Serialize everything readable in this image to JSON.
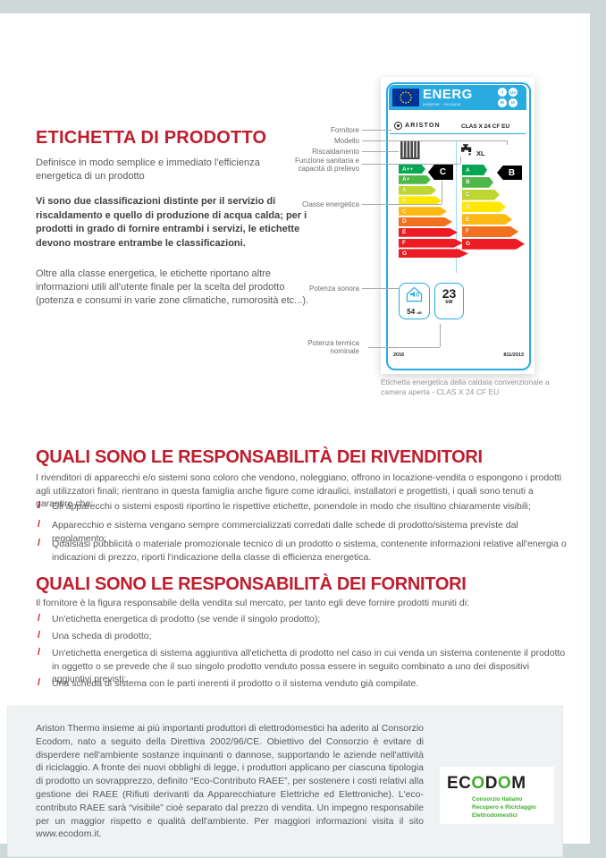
{
  "intro": {
    "heading": "ETICHETTA DI PRODOTTO",
    "p1": "Definisce in modo semplice e immediato l'efficienza energetica di un prodotto",
    "p2": "Vi sono due classificazioni distinte per il servizio di riscaldamento e quello di produzione di acqua calda; per i prodotti in grado di fornire entrambi i servizi, le etichette devono mostrare entrambe le classificazioni.",
    "p3": "Oltre alla classe energetica, le etichette riportano altre informazioni utili all'utente finale per la scelta del prodotto (potenza e consumi in varie zone climatiche, rumorosità etc...)."
  },
  "energy_label": {
    "header": {
      "word": "ENERG",
      "subtitle": "енергия · ενεργεια",
      "badges": [
        "Y",
        "IJA",
        "IE",
        "IA"
      ]
    },
    "supplier": "ARISTON",
    "model": "CLAS X 24 CF EU",
    "dhw_capacity": "XL",
    "left_scale": {
      "indicator": "C",
      "classes": [
        {
          "label": "A++",
          "color": "#00a651"
        },
        {
          "label": "A+",
          "color": "#4db848"
        },
        {
          "label": "A",
          "color": "#bed630"
        },
        {
          "label": "B",
          "color": "#ffe800"
        },
        {
          "label": "C",
          "color": "#fdb913"
        },
        {
          "label": "D",
          "color": "#f3701e"
        },
        {
          "label": "E",
          "color": "#ed1c24"
        },
        {
          "label": "F",
          "color": "#ed1c24"
        },
        {
          "label": "G",
          "color": "#ed1c24"
        }
      ]
    },
    "right_scale": {
      "indicator": "B",
      "classes": [
        {
          "label": "A",
          "color": "#00a651"
        },
        {
          "label": "B",
          "color": "#4db848"
        },
        {
          "label": "C",
          "color": "#bed630"
        },
        {
          "label": "D",
          "color": "#ffe800"
        },
        {
          "label": "E",
          "color": "#fdb913"
        },
        {
          "label": "F",
          "color": "#f3701e"
        },
        {
          "label": "G",
          "color": "#ed1c24"
        }
      ]
    },
    "sound_power": {
      "value": "54",
      "unit": "dB"
    },
    "heat_output": {
      "value": "23",
      "unit": "kW"
    },
    "year": "2016",
    "regulation": "811/2013",
    "annotations": {
      "fornitore": "Fornitore",
      "modello": "Modello",
      "riscaldamento": "Riscaldamento",
      "funzione_line1": "Funzione sanitaria e",
      "funzione_line2": "capacità di prelievo",
      "classe": "Classe energetica",
      "sonora": "Potenza sonora",
      "termica_line1": "Potenza termica",
      "termica_line2": "nominale"
    },
    "caption": "Etichetta energetica della caldaia convenzionale a camera aperta - CLAS X 24 CF EU"
  },
  "sections": [
    {
      "heading": "QUALI SONO LE RESPONSABILITÀ DEI RIVENDITORI",
      "intro": "I rivenditori di apparecchi e/o sistemi sono coloro che vendono, noleggiano, offrono in locazione-vendita o espongono i prodotti agli utilizzatori finali; rientrano in questa famiglia anche figure come idraulici, installatori e progettisti, i quali sono tenuti a garantire che:",
      "bullet_mark": "/",
      "bullets": [
        "Gli apparecchi o sistemi esposti riportino le rispettive etichette, ponendole in modo che risultino chiaramente visibili;",
        "Apparecchio e sistema vengano sempre commercializzati corredati dalle schede di prodotto/sistema previste dal regolamento;",
        "Qualsiasi pubblicità o materiale promozionale tecnico di un prodotto o sistema, contenente informazioni relative all'energia o indicazioni di prezzo, riporti l'indicazione della classe di efficienza energetica."
      ]
    },
    {
      "heading": "QUALI SONO LE RESPONSABILITÀ DEI FORNITORI",
      "intro": "Il fornitore è la figura responsabile della vendita sul mercato, per tanto egli deve fornire prodotti muniti di:",
      "bullet_mark": "/",
      "bullets": [
        "Un'etichetta energetica di prodotto (se vende il singolo prodotto);",
        "Una scheda di prodotto;",
        "Un'etichetta energetica di sistema aggiuntiva all'etichetta di prodotto nel caso in cui venda un sistema contenente il prodotto in oggetto o se prevede che il suo singolo prodotto venduto possa essere in seguito combinato a uno dei dispositivi aggiuntivi previsti;",
        "Una scheda di sistema con le parti inerenti il prodotto o il sistema venduto già compilate."
      ]
    }
  ],
  "footer_box": {
    "text": "Ariston Thermo insieme ai più importanti produttori di elettrodomestici ha aderito al Consorzio Ecodom, nato a seguito della Direttiva 2002/96/CE. Obiettivo del Consorzio è evitare di disperdere nell'ambiente sostanze inquinanti o dannose, supportando le aziende nell'attività di riciclaggio. A fronte dei nuovi obblighi di legge, i produttori applicano per ciascuna tipologia di prodotto un sovrapprezzo, definito “Eco-Contributo RAEE”, per sostenere i costi relativi alla gestione dei RAEE (Rifiuti derivanti da Apparecchiature Elettriche ed Elettroniche). L'eco-contributo RAEE sarà “visibile” cioè separato dal prezzo di vendita. Un impegno responsabile per un maggior rispetto e qualità dell'ambiente. Per maggiori informazioni visita il sito www.ecodom.it.",
    "ecodom": {
      "word_parts": {
        "p1": "EC",
        "o1": "O",
        "p2": "D",
        "o2": "O",
        "p3": "M"
      },
      "sub1": "Consorzio Italiano",
      "sub2": "Recupero e Riciclaggio",
      "sub3": "Elettrodomestici"
    }
  },
  "colors": {
    "accent_red": "#be1e2d",
    "label_blue": "#29abe2",
    "eu_flag_blue": "#003399",
    "ecodom_green": "#3fae2a",
    "background_teal": "#cdd9d9"
  }
}
